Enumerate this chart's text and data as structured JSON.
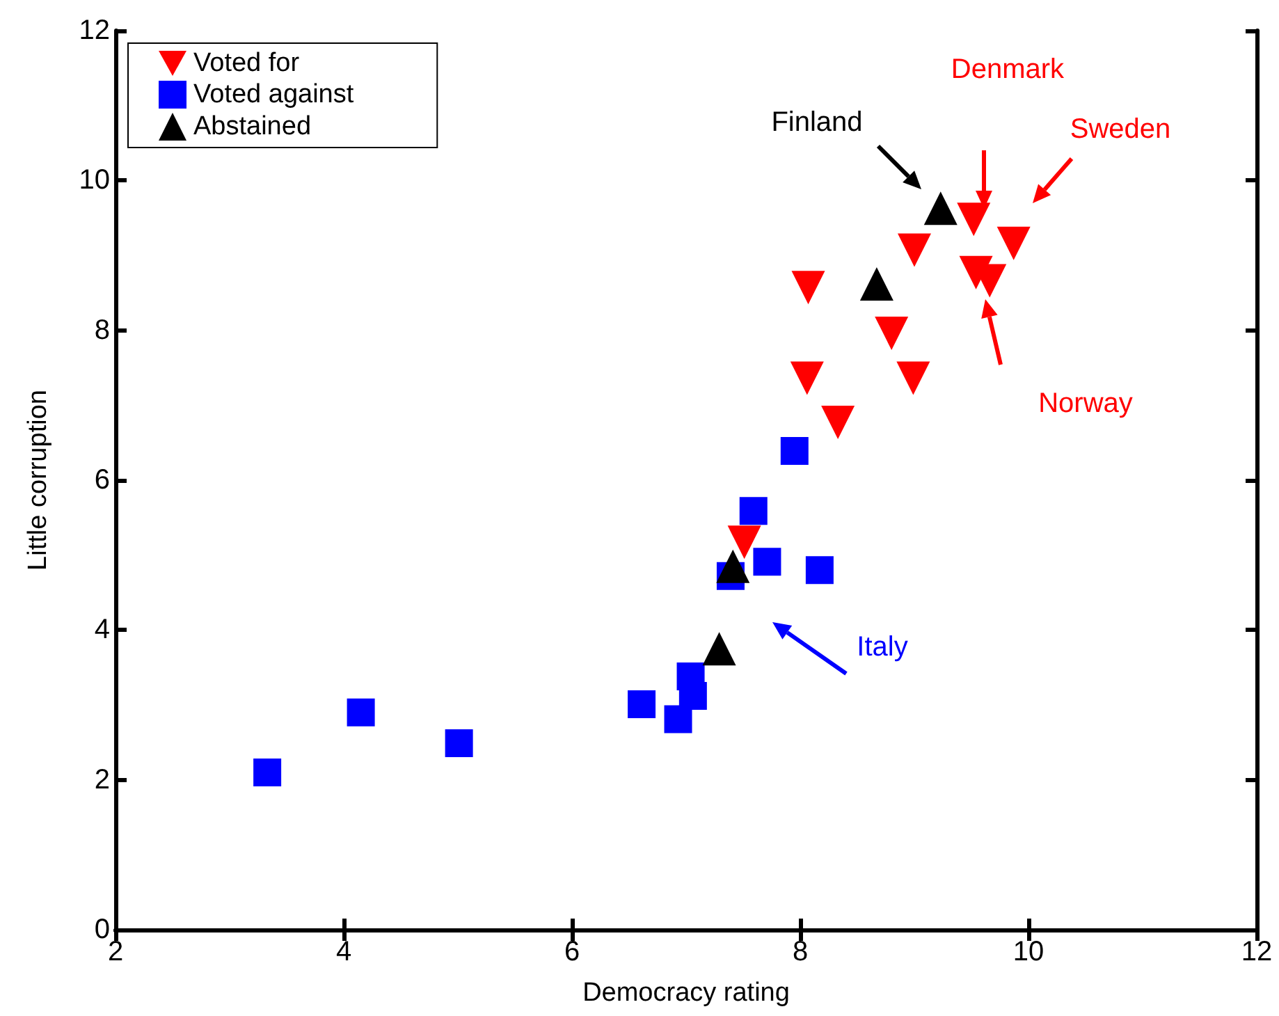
{
  "chart_data": {
    "type": "scatter",
    "xlabel": "Democracy rating",
    "ylabel": "Little corruption",
    "xlim": [
      2,
      12
    ],
    "ylim": [
      0,
      12
    ],
    "xticks": [
      2,
      4,
      6,
      8,
      10,
      12
    ],
    "yticks": [
      0,
      2,
      4,
      6,
      8,
      10,
      12
    ],
    "grid": false,
    "legend": "top left",
    "series": [
      {
        "name": "Voted for",
        "color": "#ff0000",
        "marker": "triangle_down",
        "x": [
          8.07,
          9.52,
          9.87,
          9.0,
          9.54,
          9.66,
          8.8,
          8.06,
          8.99,
          8.33,
          7.51
        ],
        "values": [
          8.57,
          9.48,
          9.16,
          9.07,
          8.77,
          8.66,
          7.96,
          7.36,
          7.36,
          6.77,
          5.17
        ]
      },
      {
        "name": "Voted against",
        "color": "#0000ff",
        "marker": "square",
        "x": [
          3.33,
          4.15,
          5.01,
          6.61,
          6.93,
          7.04,
          7.06,
          7.39,
          7.71,
          8.17,
          7.59,
          7.95
        ],
        "values": [
          2.1,
          2.9,
          2.49,
          3.01,
          2.81,
          3.38,
          3.12,
          4.72,
          4.91,
          4.8,
          5.59,
          6.39
        ]
      },
      {
        "name": "Abstained",
        "color": "#000000",
        "marker": "triangle",
        "x": [
          9.23,
          8.67,
          7.41,
          7.29
        ],
        "values": [
          9.63,
          8.62,
          4.85,
          3.75
        ]
      }
    ],
    "annotations": [
      "Finland",
      "Denmark",
      "Sweden",
      "Norway",
      "Italy"
    ]
  }
}
